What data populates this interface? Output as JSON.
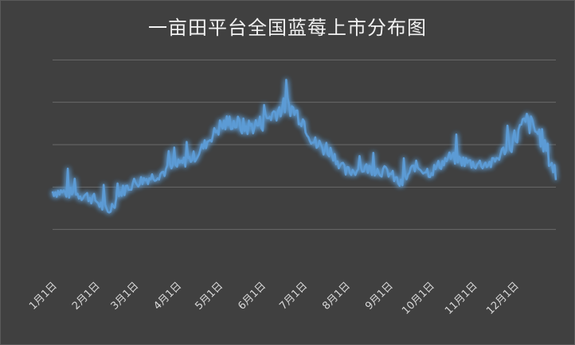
{
  "chart_data": {
    "type": "line",
    "title": "一亩田平台全国蓝莓上市分布图",
    "xlabel": "",
    "ylabel": "",
    "y_axis_labels_shown": false,
    "grid": true,
    "legend": "none",
    "ylim": [
      0,
      6
    ],
    "yticks": [
      1,
      2,
      3,
      4,
      5
    ],
    "line_color": "#5b9bd5",
    "background_color": "#404040",
    "x_tick_labels": [
      "1月1日",
      "2月1日",
      "3月1日",
      "4月1日",
      "5月1日",
      "6月1日",
      "7月1日",
      "8月1日",
      "9月1日",
      "10月1日",
      "11月1日",
      "12月1日"
    ],
    "series": [
      {
        "name": "",
        "x": [
          "1月1日",
          "1月15日",
          "1月25日",
          "2月1日",
          "2月10日",
          "2月20日",
          "3月1日",
          "3月15日",
          "4月1日",
          "4月15日",
          "5月1日",
          "5月10日",
          "5月20日",
          "6月1日",
          "6月10日",
          "6月20日",
          "7月1日",
          "7月10日",
          "7月20日",
          "8月1日",
          "8月15日",
          "9月1日",
          "9月10日",
          "9月20日",
          "10月1日",
          "10月15日",
          "11月1日",
          "11月15日",
          "12月1日",
          "12月10日",
          "12月20日",
          "12月31日"
        ],
        "values": [
          1.9,
          1.85,
          1.8,
          1.7,
          1.4,
          1.9,
          2.1,
          2.25,
          2.5,
          2.75,
          3.4,
          3.55,
          3.4,
          3.5,
          3.75,
          3.95,
          3.6,
          3.0,
          2.9,
          2.35,
          2.45,
          2.35,
          2.05,
          2.5,
          2.35,
          2.7,
          2.55,
          2.55,
          3.15,
          3.55,
          3.2,
          2.3
        ]
      }
    ]
  }
}
